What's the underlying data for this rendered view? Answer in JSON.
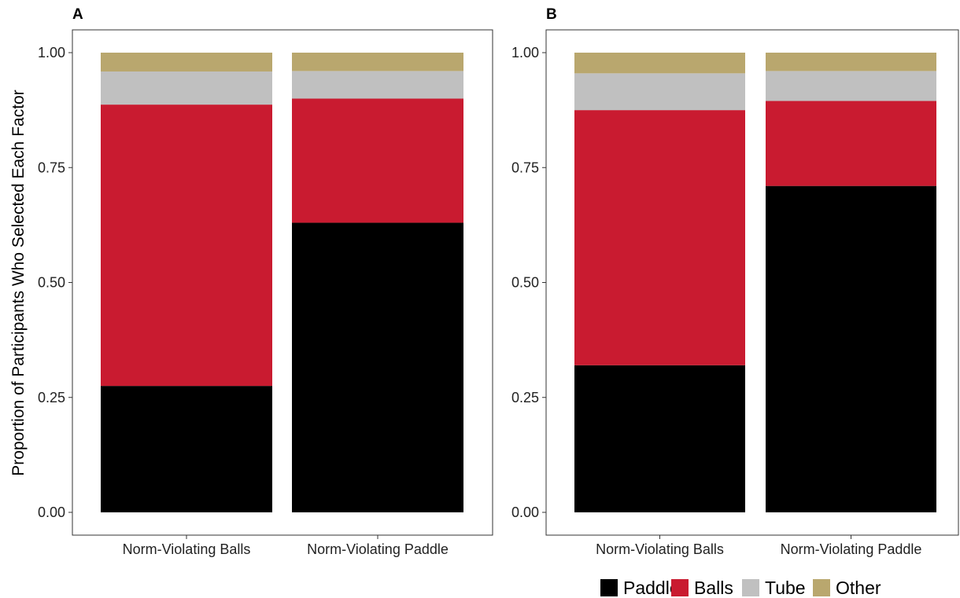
{
  "ylabel": "Proportion of Participants Who Selected Each Factor",
  "stack_order": [
    "Paddle",
    "Balls",
    "Tube",
    "Other"
  ],
  "colors": {
    "Paddle": "#000000",
    "Balls": "#c91b30",
    "Tube": "#c0c0c0",
    "Other": "#b9a76e",
    "panel_border": "#333333",
    "tick": "#333333"
  },
  "legend": [
    {
      "name": "Paddle",
      "label": "Paddle"
    },
    {
      "name": "Balls",
      "label": "Balls"
    },
    {
      "name": "Tube",
      "label": "Tube"
    },
    {
      "name": "Other",
      "label": "Other"
    }
  ],
  "chart_data": [
    {
      "type": "bar",
      "stacked": true,
      "panel_label": "A",
      "categories": [
        "Norm-Violating Balls",
        "Norm-Violating Paddle"
      ],
      "series": [
        {
          "name": "Paddle",
          "values": [
            0.275,
            0.63
          ]
        },
        {
          "name": "Balls",
          "values": [
            0.612,
            0.27
          ]
        },
        {
          "name": "Tube",
          "values": [
            0.072,
            0.06
          ]
        },
        {
          "name": "Other",
          "values": [
            0.041,
            0.04
          ]
        }
      ],
      "ylim": [
        0,
        1
      ],
      "yticks": [
        "0.00",
        "0.25",
        "0.50",
        "0.75",
        "1.00"
      ],
      "grid": false,
      "legend_position": "bottom-right"
    },
    {
      "type": "bar",
      "stacked": true,
      "panel_label": "B",
      "categories": [
        "Norm-Violating Balls",
        "Norm-Violating Paddle"
      ],
      "series": [
        {
          "name": "Paddle",
          "values": [
            0.32,
            0.71
          ]
        },
        {
          "name": "Balls",
          "values": [
            0.555,
            0.185
          ]
        },
        {
          "name": "Tube",
          "values": [
            0.08,
            0.065
          ]
        },
        {
          "name": "Other",
          "values": [
            0.045,
            0.04
          ]
        }
      ],
      "ylim": [
        0,
        1
      ],
      "yticks": [
        "0.00",
        "0.25",
        "0.50",
        "0.75",
        "1.00"
      ],
      "grid": false,
      "legend_position": "bottom-right"
    }
  ]
}
